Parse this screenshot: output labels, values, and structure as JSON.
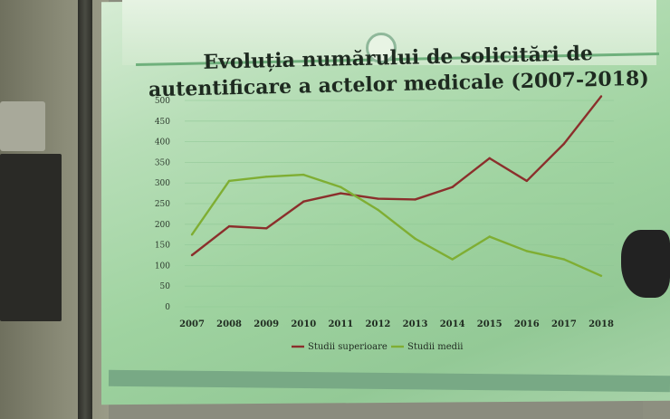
{
  "chart_data": {
    "type": "line",
    "title": "Evoluția numărului de solicitări de autentificare a actelor medicale (2007-2018)",
    "categories": [
      "2007",
      "2008",
      "2009",
      "2010",
      "2011",
      "2012",
      "2013",
      "2014",
      "2015",
      "2016",
      "2017",
      "2018"
    ],
    "yticks": [
      "0",
      "50",
      "100",
      "150",
      "200",
      "250",
      "300",
      "350",
      "400",
      "450",
      "500"
    ],
    "ylim": [
      0,
      500
    ],
    "series": [
      {
        "name": "Studii superioare",
        "color": "#8b2f2c",
        "values": [
          125,
          195,
          190,
          255,
          275,
          262,
          260,
          290,
          360,
          305,
          395,
          510
        ]
      },
      {
        "name": "Studii medii",
        "color": "#7fae33",
        "values": [
          175,
          305,
          315,
          320,
          290,
          235,
          165,
          115,
          170,
          135,
          115,
          75
        ]
      }
    ],
    "legend_position": "bottom",
    "grid": true
  }
}
